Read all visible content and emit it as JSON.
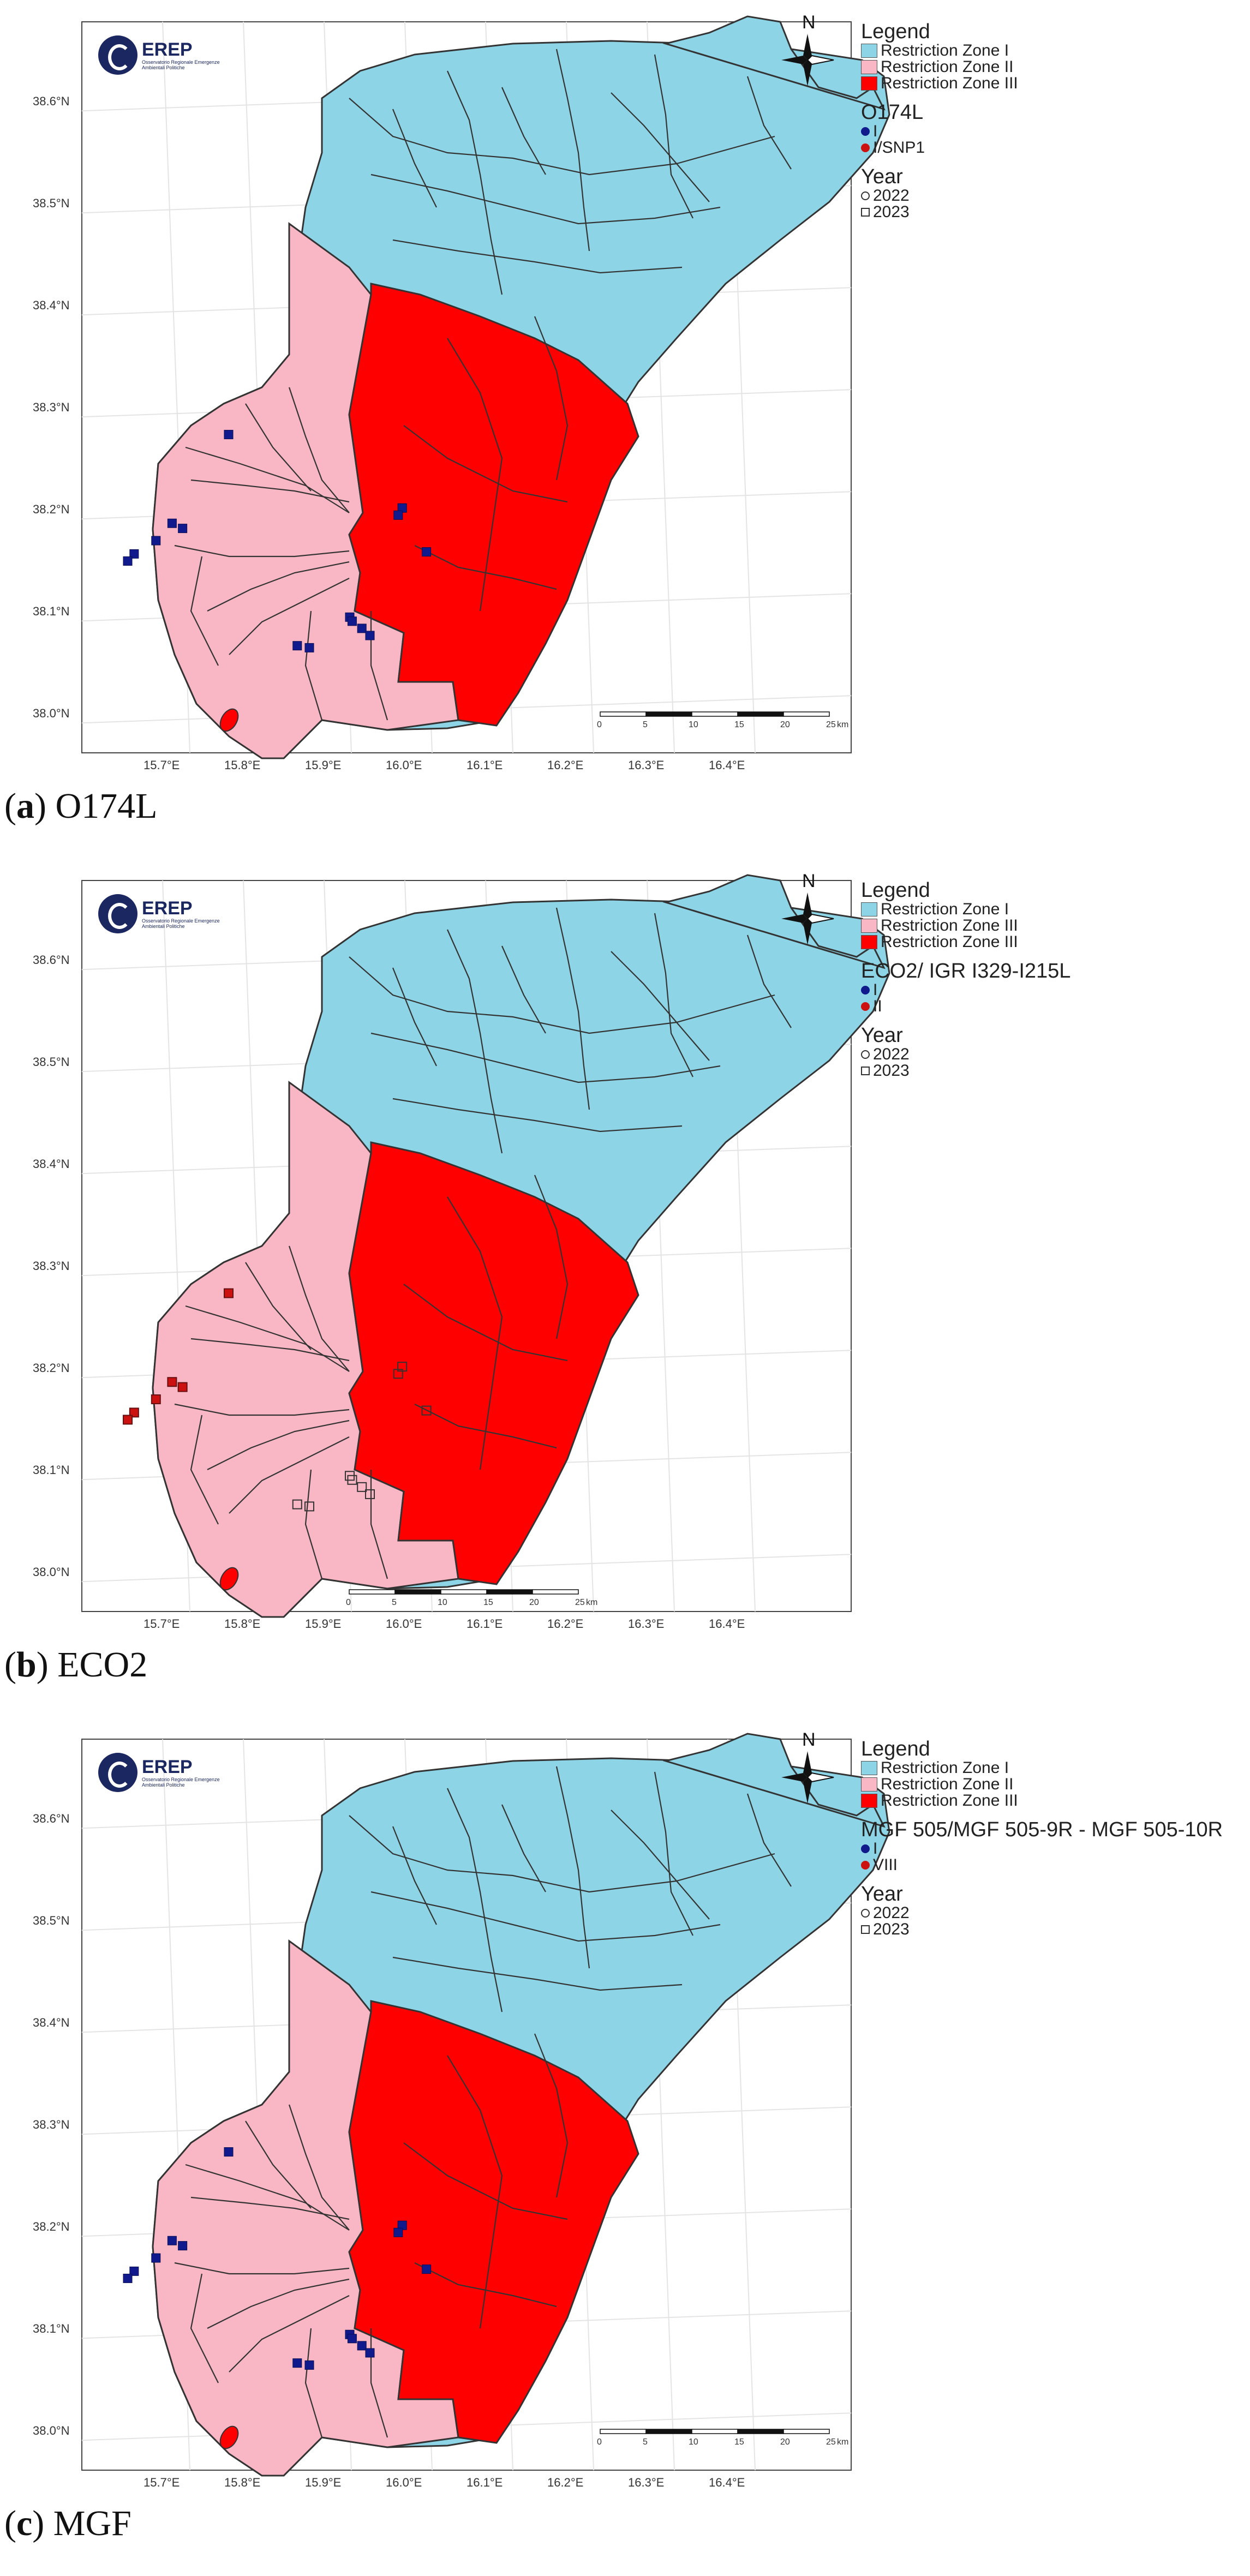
{
  "colors": {
    "zone1": "#8dd5e6",
    "zone2": "#f9b6c5",
    "zone3": "#ff0000",
    "marker_blue": "#101a8c",
    "marker_red": "#cc1111",
    "border": "#333333"
  },
  "axes": {
    "lat_labels": [
      "38.6°N",
      "38.5°N",
      "38.4°N",
      "38.3°N",
      "38.2°N",
      "38.1°N",
      "38.0°N"
    ],
    "lon_labels": [
      "15.7°E",
      "15.8°E",
      "15.9°E",
      "16.0°E",
      "16.1°E",
      "16.2°E",
      "16.3°E",
      "16.4°E"
    ]
  },
  "logo": {
    "title": "EREP",
    "subtitle": "Osservatorio Regionale Emergenze Ambientali Politiche"
  },
  "compass": {
    "label": "N"
  },
  "scalebar": {
    "labels": [
      "0",
      "5",
      "10",
      "15",
      "20",
      "25"
    ],
    "unit": "km"
  },
  "panels": [
    {
      "caption_letter": "(a)",
      "caption_text": "O174L",
      "legend": {
        "title": "Legend",
        "zones": [
          "Restriction Zone I",
          "Restriction Zone II",
          "Restriction Zone III"
        ],
        "genotype_title": "O174L",
        "genotypes": [
          "I",
          "I/SNP1"
        ],
        "year_title": "Year",
        "years": [
          "2022",
          "2023"
        ]
      },
      "marker_color": "#101a8c"
    },
    {
      "caption_letter": "(b)",
      "caption_text": "ECO2",
      "legend": {
        "title": "Legend",
        "zones": [
          "Restriction Zone I",
          "Restriction Zone III",
          "Restriction Zone III"
        ],
        "genotype_title": "ECO2/ IGR I329-I215L",
        "genotypes": [
          "I",
          "II"
        ],
        "year_title": "Year",
        "years": [
          "2022",
          "2023"
        ]
      },
      "marker_color": "#cc1111"
    },
    {
      "caption_letter": "(c)",
      "caption_text": "MGF",
      "legend": {
        "title": "Legend",
        "zones": [
          "Restriction Zone I",
          "Restriction Zone II",
          "Restriction Zone III"
        ],
        "genotype_title": "MGF 505/MGF 505-9R - MGF 505-10R",
        "genotypes": [
          "I",
          "VIII"
        ],
        "year_title": "Year",
        "years": [
          "2022",
          "2023"
        ]
      },
      "marker_color": "#101a8c"
    }
  ],
  "sampling_points": [
    {
      "lon": 15.775,
      "lat": 38.272
    },
    {
      "lon": 15.705,
      "lat": 38.185
    },
    {
      "lon": 15.718,
      "lat": 38.18
    },
    {
      "lon": 15.685,
      "lat": 38.168
    },
    {
      "lon": 15.658,
      "lat": 38.155
    },
    {
      "lon": 15.65,
      "lat": 38.148
    },
    {
      "lon": 15.99,
      "lat": 38.2
    },
    {
      "lon": 15.985,
      "lat": 38.193
    },
    {
      "lon": 16.02,
      "lat": 38.157
    },
    {
      "lon": 15.925,
      "lat": 38.093
    },
    {
      "lon": 15.928,
      "lat": 38.089
    },
    {
      "lon": 15.94,
      "lat": 38.082
    },
    {
      "lon": 15.95,
      "lat": 38.075
    },
    {
      "lon": 15.86,
      "lat": 38.065
    },
    {
      "lon": 15.875,
      "lat": 38.063
    }
  ]
}
